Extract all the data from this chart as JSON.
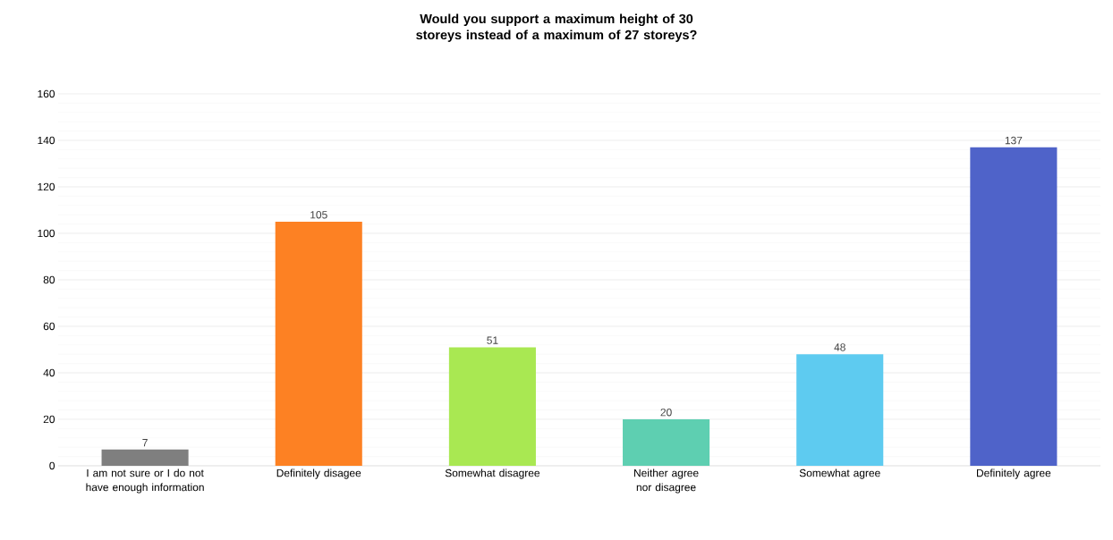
{
  "chart_data": {
    "type": "bar",
    "title": "Would you support a maximum height of 30 storeys instead of a maximum of 27 storeys?",
    "categories": [
      "I am not sure or I do not have enough information",
      "Definitely disagee",
      "Somewhat disagree",
      "Neither agree nor disagree",
      "Somewhat agree",
      "Definitely agree"
    ],
    "values": [
      7,
      105,
      51,
      20,
      48,
      137
    ],
    "colors": [
      "#7f7f7f",
      "#fd8123",
      "#a9e852",
      "#5ecfb1",
      "#5ecbf0",
      "#4f63c9"
    ],
    "ylim": [
      0,
      160
    ],
    "yticks": [
      0,
      20,
      40,
      60,
      80,
      100,
      120,
      140,
      160
    ],
    "grid": "y",
    "data_labels": true
  }
}
